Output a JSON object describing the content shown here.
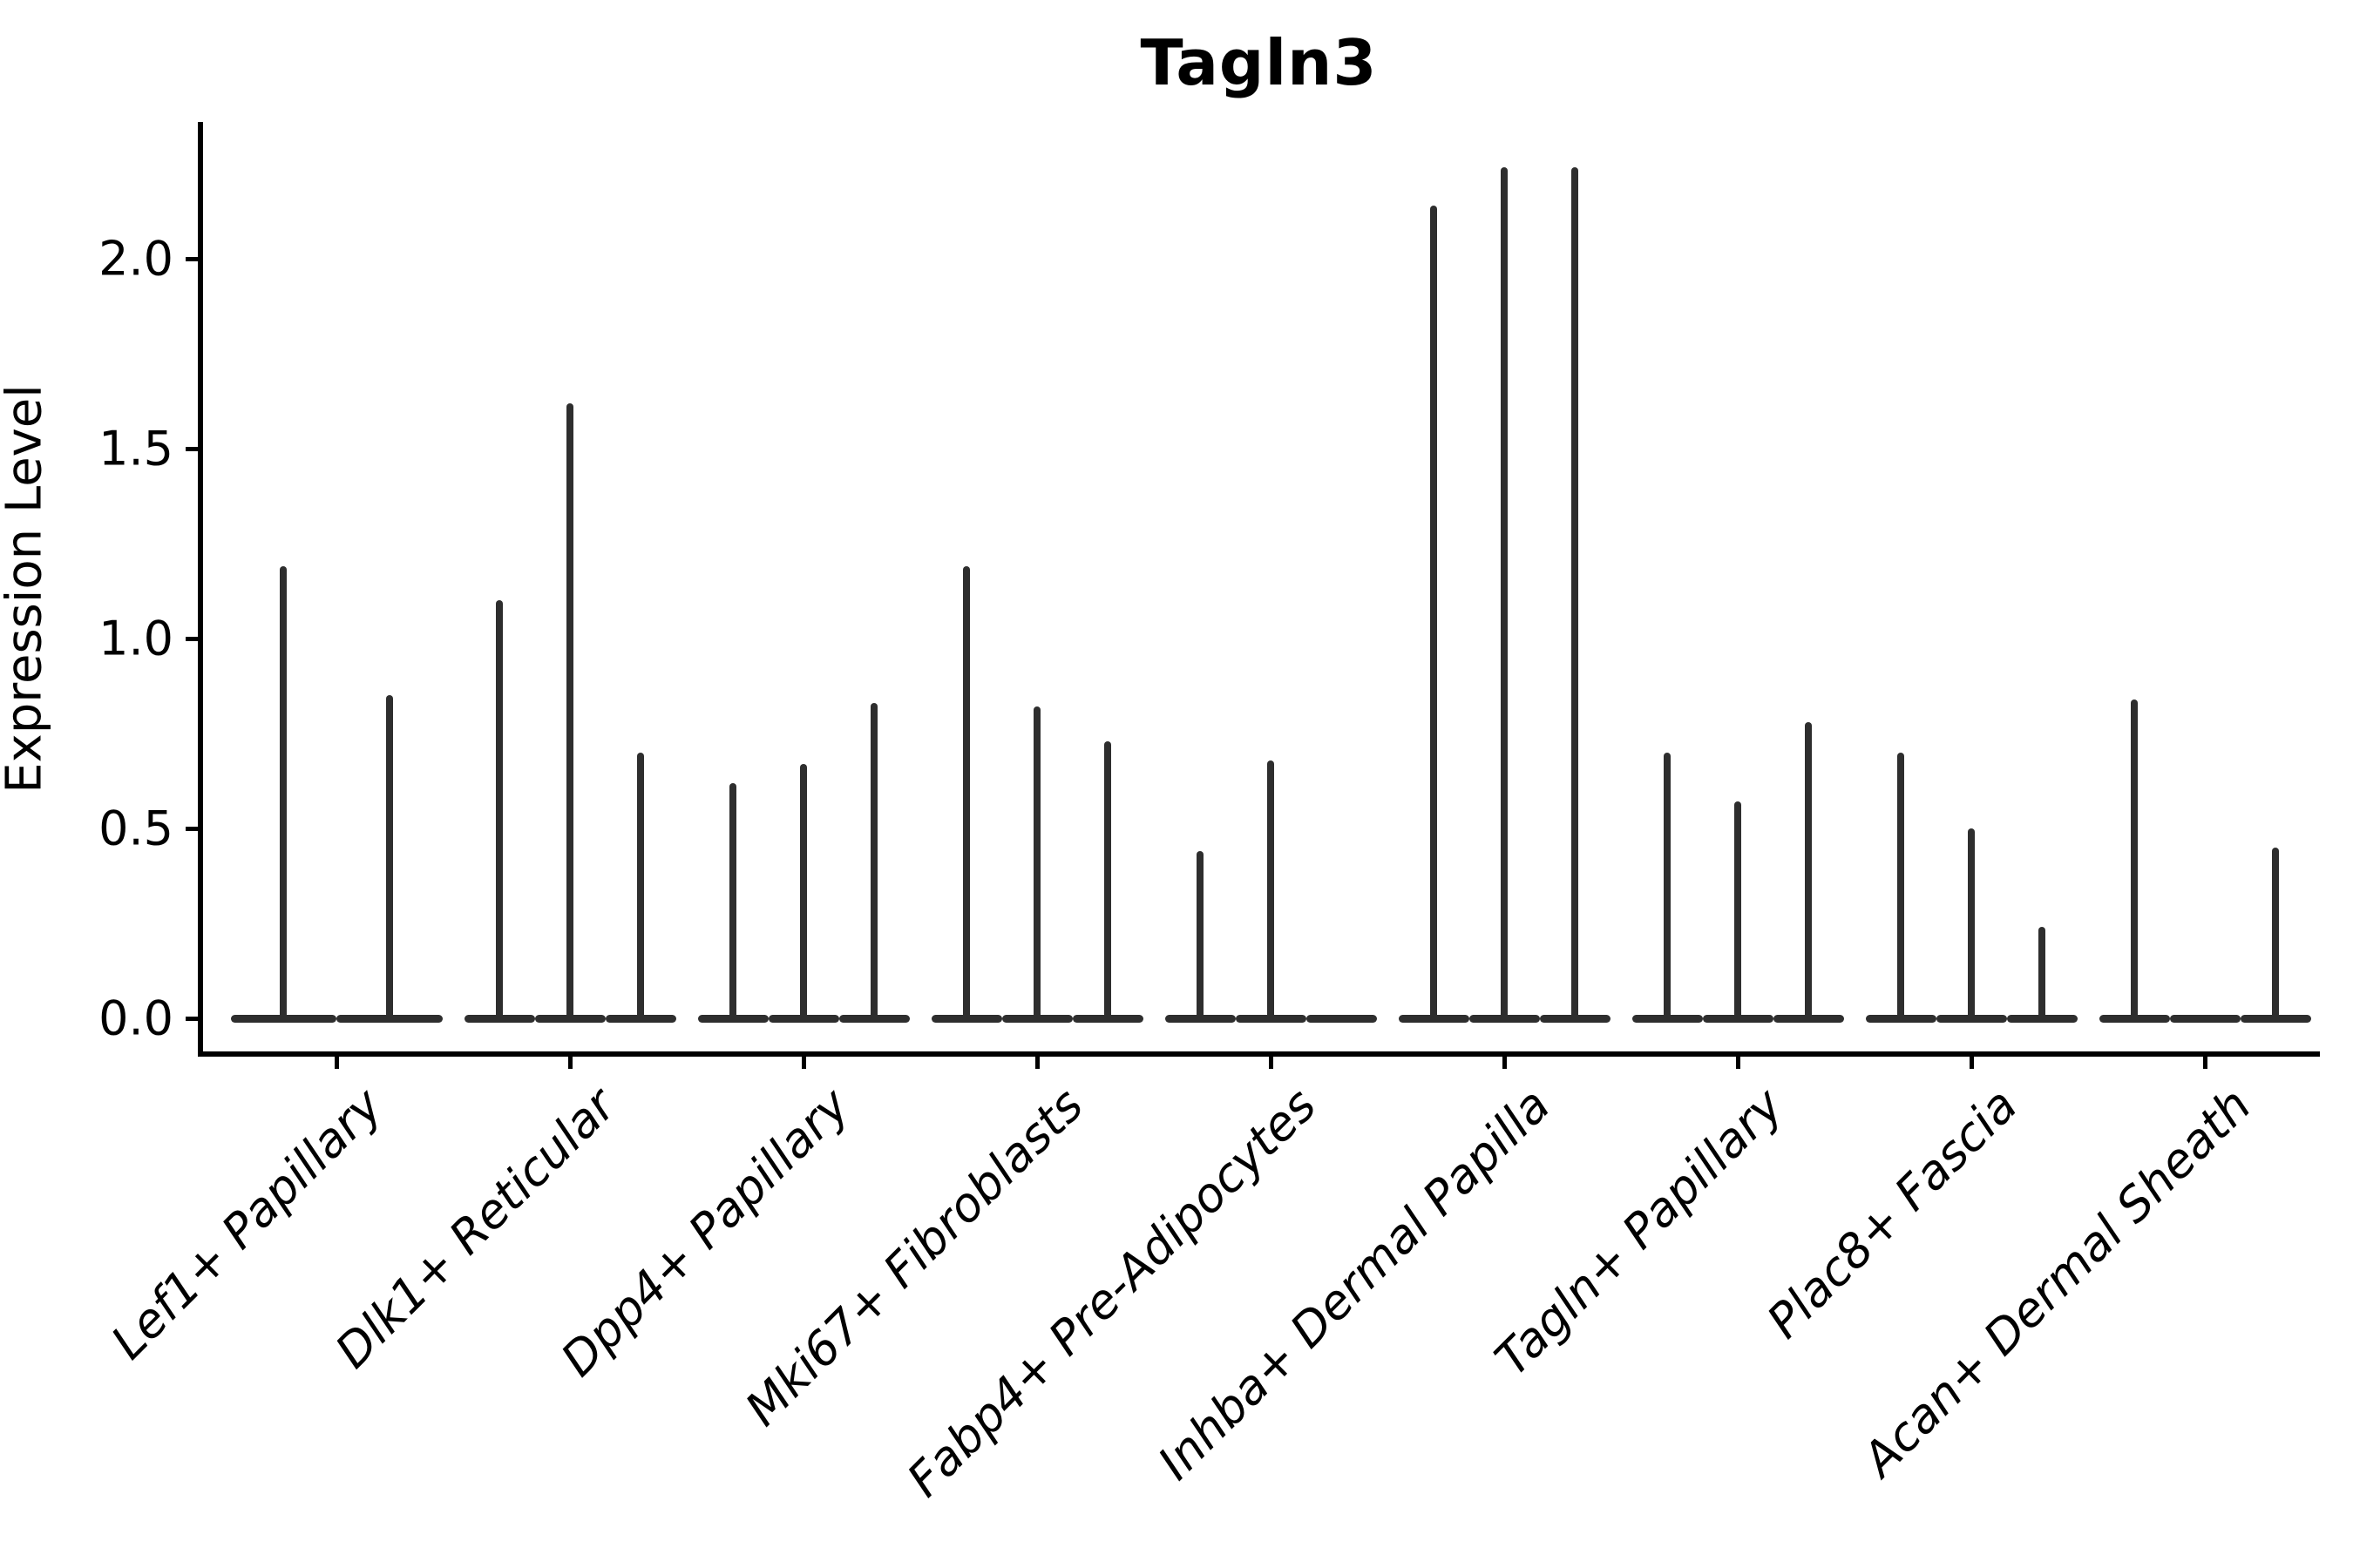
{
  "chart_data": {
    "type": "violin",
    "title": "Tagln3",
    "xlabel": "",
    "ylabel": "Expression Level",
    "y_ticks": [
      0.0,
      0.5,
      1.0,
      1.5,
      2.0
    ],
    "ylim": [
      -0.11,
      2.36
    ],
    "grid": false,
    "legend": "none",
    "line_color": "#2e2e2e",
    "axis_color": "#000000",
    "note": "Each category shows thin violins (one per sub-group); a value of 0 means a flat violin lying on the baseline",
    "categories": [
      {
        "label": "Lef1+ Papillary",
        "violin_max_values": [
          1.19,
          0.85
        ]
      },
      {
        "label": "Dlk1+ Reticular",
        "violin_max_values": [
          1.1,
          1.62,
          0.7
        ]
      },
      {
        "label": "Dpp4+ Papillary",
        "violin_max_values": [
          0.62,
          0.67,
          0.83
        ]
      },
      {
        "label": "Mki67+ Fibroblasts",
        "violin_max_values": [
          1.19,
          0.82,
          0.73
        ]
      },
      {
        "label": "Fabp4+ Pre-Adipocytes",
        "violin_max_values": [
          0.44,
          0.68,
          0
        ]
      },
      {
        "label": "Inhba+ Dermal Papilla",
        "violin_max_values": [
          2.14,
          2.24,
          2.24
        ]
      },
      {
        "label": "Tagln+ Papillary",
        "violin_max_values": [
          0.7,
          0.57,
          0.78
        ]
      },
      {
        "label": "Plac8+ Fascia",
        "violin_max_values": [
          0.7,
          0.5,
          0.24
        ]
      },
      {
        "label": "Acan+ Dermal Sheath",
        "violin_max_values": [
          0.84,
          0,
          0.45
        ]
      }
    ]
  }
}
